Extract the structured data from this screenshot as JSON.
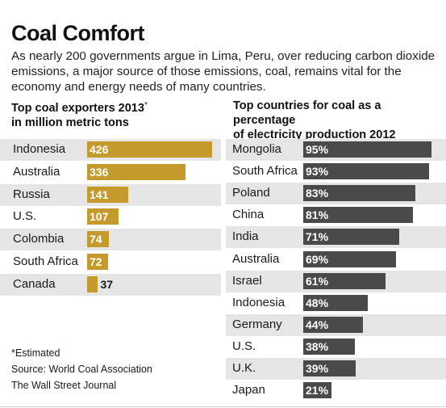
{
  "title": "Coal Comfort",
  "subtitle": "As nearly 200 governments argue in Lima, Peru, over reducing carbon dioxide emissions, a major source of those emissions, coal, remains vital for the economy and energy needs of many countries.",
  "colors": {
    "exports_bar": "#c49a2c",
    "share_bar": "#4a4a4a",
    "stripe": "#e5e5e5"
  },
  "footnotes": {
    "estimated": "*Estimated",
    "source": "Source: World Coal Association",
    "publisher": "The Wall Street Journal"
  },
  "chart_data": [
    {
      "type": "bar",
      "orientation": "horizontal",
      "title_line1": "Top coal exporters 2013",
      "title_marker": "*",
      "title_line2": "in million metric tons",
      "categories": [
        "Indonesia",
        "Australia",
        "Russia",
        "U.S.",
        "Colombia",
        "South Africa",
        "Canada"
      ],
      "values": [
        426,
        336,
        141,
        107,
        74,
        72,
        37
      ],
      "value_labels": [
        "426",
        "336",
        "141",
        "107",
        "74",
        "72",
        "37"
      ]
    },
    {
      "type": "bar",
      "orientation": "horizontal",
      "title_line1": "Top countries for coal as a percentage",
      "title_line2": "of electricity production 2012",
      "categories": [
        "Mongolia",
        "South Africa",
        "Poland",
        "China",
        "India",
        "Australia",
        "Israel",
        "Indonesia",
        "Germany",
        "U.S.",
        "U.K.",
        "Japan"
      ],
      "values": [
        95,
        93,
        83,
        81,
        71,
        69,
        61,
        48,
        44,
        38,
        39,
        21
      ],
      "value_labels": [
        "95%",
        "93%",
        "83%",
        "81%",
        "71%",
        "69%",
        "61%",
        "48%",
        "44%",
        "38%",
        "39%",
        "21%"
      ]
    }
  ]
}
